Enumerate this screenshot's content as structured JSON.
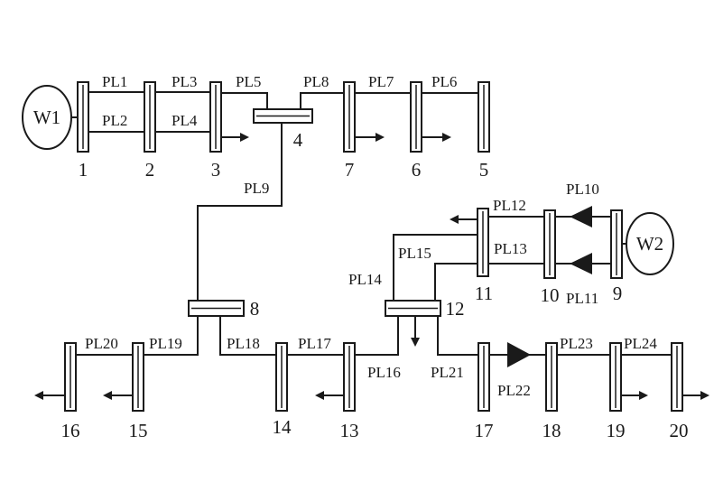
{
  "generators": [
    "W1",
    "W2"
  ],
  "buses": [
    "1",
    "2",
    "3",
    "4",
    "5",
    "6",
    "7",
    "8",
    "9",
    "10",
    "11",
    "12",
    "13",
    "14",
    "15",
    "16",
    "17",
    "18",
    "19",
    "20"
  ],
  "lines": [
    "PL1",
    "PL2",
    "PL3",
    "PL4",
    "PL5",
    "PL6",
    "PL7",
    "PL8",
    "PL9",
    "PL10",
    "PL11",
    "PL12",
    "PL13",
    "PL14",
    "PL15",
    "PL16",
    "PL17",
    "PL18",
    "PL19",
    "PL20",
    "PL21",
    "PL22",
    "PL23",
    "PL24"
  ]
}
